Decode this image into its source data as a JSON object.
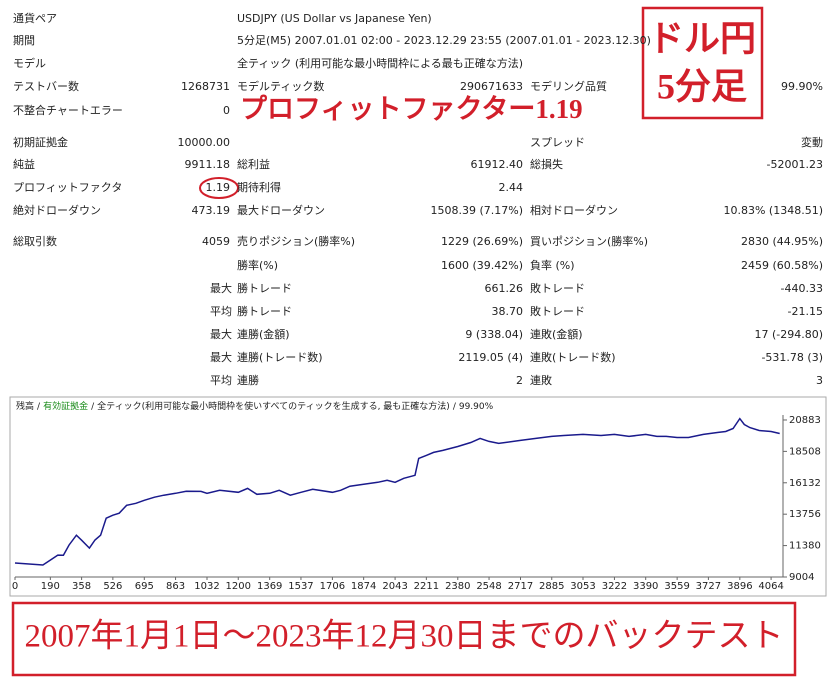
{
  "report": {
    "rows": [
      [
        {
          "label": "通貨ペア",
          "value": "USDJPY (US Dollar vs Japanese Yen)"
        }
      ],
      [
        {
          "label": "期間",
          "value": "5分足(M5) 2007.01.01 02:00 - 2023.12.29 23:55 (2007.01.01 - 2023.12.30)"
        }
      ],
      [
        {
          "label": "モデル",
          "value": "全ティック (利用可能な最小時間枠による最も正確な方法)"
        }
      ],
      [
        {
          "label": "テストバー数",
          "value": "1268731"
        },
        {
          "label": "モデルティック数",
          "value": "290671633"
        },
        {
          "label": "モデリング品質",
          "value": "99.90%"
        }
      ],
      [
        {
          "label": "不整合チャートエラー",
          "value": "0"
        }
      ],
      [
        {
          "label": "初期証拠金",
          "value": "10000.00"
        },
        null,
        {
          "label": "スプレッド",
          "value": "変動"
        }
      ],
      [
        {
          "label": "純益",
          "value": "9911.18"
        },
        {
          "label": "総利益",
          "value": "61912.40"
        },
        {
          "label": "総損失",
          "value": "-52001.23"
        }
      ],
      [
        {
          "label": "プロフィットファクタ",
          "value": "1.19"
        },
        {
          "label": "期待利得",
          "value": "2.44"
        }
      ],
      [
        {
          "label": "絶対ドローダウン",
          "value": "473.19"
        },
        {
          "label": "最大ドローダウン",
          "value": "1508.39 (7.17%)"
        },
        {
          "label": "相対ドローダウン",
          "value": "10.83% (1348.51)"
        }
      ],
      [
        {
          "label": "総取引数",
          "value": "4059"
        },
        {
          "label": "売りポジション(勝率%)",
          "value": "1229 (26.69%)"
        },
        {
          "label": "買いポジション(勝率%)",
          "value": "2830 (44.95%)"
        }
      ],
      [
        null,
        {
          "label": "勝率(%)",
          "value": "1600 (39.42%)"
        },
        {
          "label": "負率 (%)",
          "value": "2459 (60.58%)"
        }
      ],
      [
        null,
        {
          "prefix": "最大",
          "label": "勝トレード",
          "value": "661.26"
        },
        {
          "label": "敗トレード",
          "value": "-440.33"
        }
      ],
      [
        null,
        {
          "prefix": "平均",
          "label": "勝トレード",
          "value": "38.70"
        },
        {
          "label": "敗トレード",
          "value": "-21.15"
        }
      ],
      [
        null,
        {
          "prefix": "最大",
          "label": "連勝(金額)",
          "value": "9 (338.04)"
        },
        {
          "label": "連敗(金額)",
          "value": "17 (-294.80)"
        }
      ],
      [
        null,
        {
          "prefix": "最大",
          "label": "連勝(トレード数)",
          "value": "2119.05 (4)"
        },
        {
          "label": "連敗(トレード数)",
          "value": "-531.78 (3)"
        }
      ],
      [
        null,
        {
          "prefix": "平均",
          "label": "連勝",
          "value": "2"
        },
        {
          "label": "連敗",
          "value": "3"
        }
      ]
    ]
  },
  "annotations": {
    "box_lines": [
      "ドル円",
      "5分足"
    ],
    "profit_factor": "プロフィットファクター1.19",
    "bottom": "2007年1月1日～2023年12月30日までのバックテスト"
  },
  "chart_data": {
    "type": "line",
    "header": [
      "残高",
      "/",
      "有効証拠金",
      "/",
      "全ティック(利用可能な最小時間枠を使いすべてのティックを生成する, 最も正確な方法)",
      "/",
      "99.90%"
    ],
    "x": [
      0,
      150,
      190,
      230,
      260,
      290,
      330,
      358,
      400,
      430,
      460,
      490,
      526,
      560,
      600,
      650,
      695,
      750,
      800,
      863,
      920,
      1000,
      1032,
      1100,
      1200,
      1250,
      1300,
      1369,
      1420,
      1480,
      1537,
      1600,
      1706,
      1750,
      1800,
      1874,
      1950,
      2000,
      2043,
      2090,
      2150,
      2170,
      2211,
      2250,
      2300,
      2380,
      2450,
      2500,
      2548,
      2600,
      2717,
      2800,
      2885,
      2950,
      3053,
      3150,
      3222,
      3300,
      3390,
      3450,
      3500,
      3559,
      3620,
      3700,
      3780,
      3820,
      3860,
      3896,
      3920,
      3950,
      4000,
      4064,
      4110
    ],
    "series": [
      {
        "color": "#1a1a8c",
        "values": [
          10060,
          9910,
          10285,
          10660,
          10650,
          11420,
          12170,
          11790,
          11190,
          11800,
          12170,
          13450,
          13680,
          13830,
          14430,
          14580,
          14810,
          15040,
          15190,
          15340,
          15490,
          15480,
          15340,
          15560,
          15410,
          15710,
          15260,
          15340,
          15560,
          15190,
          15410,
          15640,
          15410,
          15560,
          15870,
          16020,
          16170,
          16320,
          16170,
          16470,
          16700,
          17980,
          18200,
          18430,
          18580,
          18880,
          19180,
          19490,
          19260,
          19110,
          19340,
          19490,
          19640,
          19710,
          19790,
          19710,
          19790,
          19640,
          19790,
          19640,
          19640,
          19560,
          19560,
          19790,
          19940,
          20010,
          20240,
          20990,
          20540,
          20310,
          20090,
          20010,
          19860
        ]
      }
    ],
    "xlim": [
      0,
      4128
    ],
    "ylim": [
      9004,
      21260
    ],
    "xticks": [
      0,
      190,
      358,
      526,
      695,
      863,
      1032,
      1200,
      1369,
      1537,
      1706,
      1874,
      2043,
      2211,
      2380,
      2548,
      2717,
      2885,
      3053,
      3222,
      3390,
      3559,
      3727,
      3896,
      4064
    ],
    "yticks": [
      9004,
      11380,
      13756,
      16132,
      18508,
      20883
    ]
  }
}
